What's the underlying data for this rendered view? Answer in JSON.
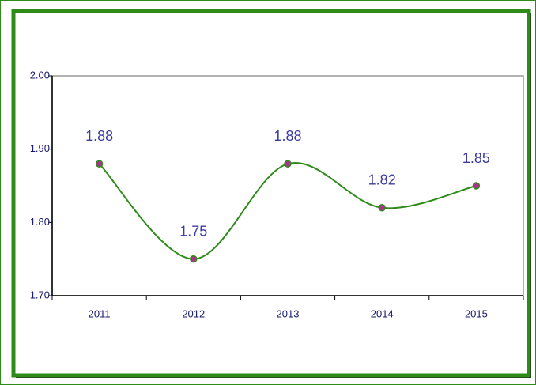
{
  "chart_data": {
    "type": "line",
    "categories": [
      "2011",
      "2012",
      "2013",
      "2014",
      "2015"
    ],
    "values": [
      1.88,
      1.75,
      1.88,
      1.82,
      1.85
    ],
    "color": "#2e8b1a",
    "marker_color": "#b0308f",
    "ylim": [
      1.7,
      2.0
    ],
    "yticks": [
      {
        "value": 1.7,
        "label": "1.70"
      },
      {
        "value": 1.8,
        "label": "1.80"
      },
      {
        "value": 1.9,
        "label": "1.90"
      },
      {
        "value": 2.0,
        "label": "2.00"
      }
    ],
    "smooth": true
  }
}
